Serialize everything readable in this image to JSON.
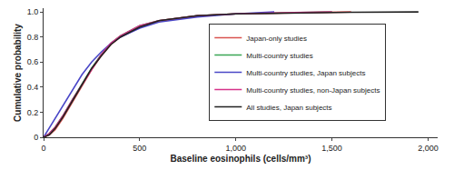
{
  "chart_data": {
    "type": "line",
    "x_label": "Baseline eosinophils (cells/mm³)",
    "y_label": "Cumulative probability",
    "xlim": [
      0,
      2050
    ],
    "xticks": [
      0,
      500,
      {
        "value": 1000,
        "label": "1,000"
      },
      {
        "value": 1500,
        "label": "1,500"
      },
      {
        "value": 2000,
        "label": "2,000"
      }
    ],
    "ylim": [
      0,
      1.03
    ],
    "yticks": [
      0,
      0.2,
      0.4,
      0.6,
      0.8,
      {
        "value": 1,
        "label": "1.0"
      }
    ],
    "grid": false,
    "legend": "center",
    "series": [
      {
        "name": "Japan-only studies",
        "color": "#d9534f",
        "x": [
          0,
          30,
          60,
          100,
          150,
          200,
          250,
          300,
          350,
          400,
          500,
          600,
          800,
          1000,
          1300,
          1600
        ],
        "values": [
          0,
          0.02,
          0.06,
          0.15,
          0.28,
          0.41,
          0.54,
          0.65,
          0.74,
          0.8,
          0.88,
          0.93,
          0.97,
          0.985,
          0.995,
          1
        ]
      },
      {
        "name": "Multi-country studies",
        "color": "#3aa655",
        "x": [
          0,
          30,
          60,
          100,
          150,
          200,
          250,
          300,
          350,
          400,
          500,
          600,
          800,
          1000,
          1300,
          1500
        ],
        "values": [
          0,
          0.03,
          0.08,
          0.17,
          0.3,
          0.43,
          0.55,
          0.66,
          0.75,
          0.81,
          0.89,
          0.93,
          0.97,
          0.985,
          0.995,
          1
        ]
      },
      {
        "name": "Multi-country studies, Japan subjects",
        "color": "#4a47c7",
        "x": [
          0,
          20,
          50,
          100,
          150,
          200,
          250,
          300,
          350,
          400,
          500,
          600,
          800,
          1000,
          1200
        ],
        "values": [
          0,
          0.05,
          0.12,
          0.25,
          0.38,
          0.5,
          0.6,
          0.68,
          0.75,
          0.8,
          0.87,
          0.92,
          0.96,
          0.985,
          1
        ]
      },
      {
        "name": "Multi-country studies, non-Japan subjects",
        "color": "#d6338a",
        "x": [
          0,
          30,
          60,
          100,
          150,
          200,
          250,
          300,
          350,
          400,
          500,
          600,
          800,
          1000,
          1300,
          1500
        ],
        "values": [
          0,
          0.03,
          0.08,
          0.17,
          0.3,
          0.42,
          0.55,
          0.66,
          0.75,
          0.81,
          0.89,
          0.93,
          0.97,
          0.985,
          0.995,
          1
        ]
      },
      {
        "name": "All studies, Japan subjects",
        "color": "#222222",
        "x": [
          0,
          30,
          60,
          100,
          150,
          200,
          250,
          300,
          350,
          400,
          500,
          600,
          800,
          1000,
          1300,
          1600,
          1950
        ],
        "values": [
          0,
          0.02,
          0.07,
          0.16,
          0.29,
          0.42,
          0.55,
          0.65,
          0.74,
          0.8,
          0.88,
          0.93,
          0.97,
          0.985,
          0.993,
          0.997,
          1
        ]
      }
    ]
  }
}
